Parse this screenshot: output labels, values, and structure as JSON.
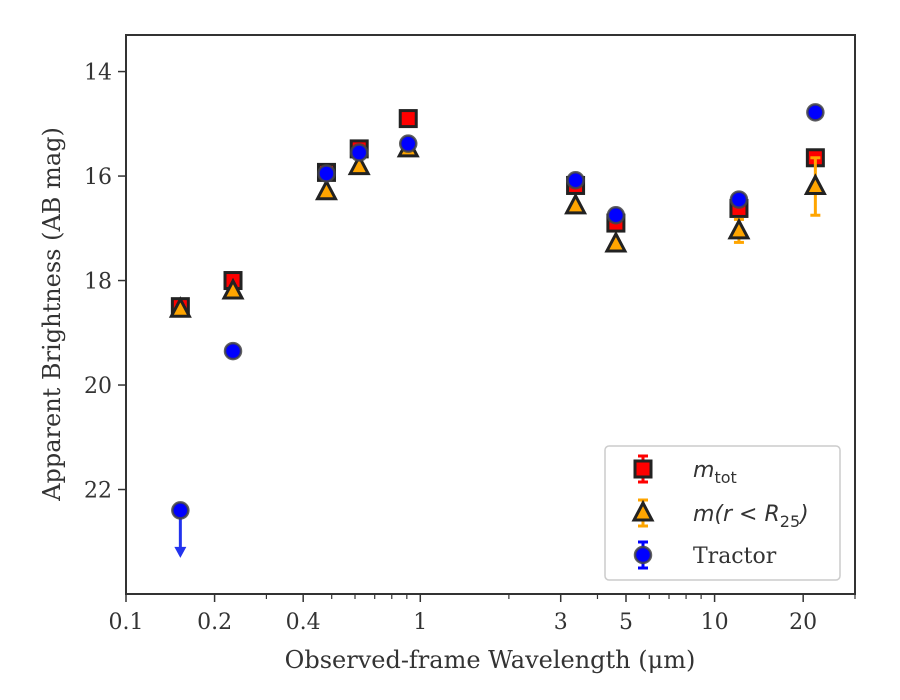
{
  "chart_data": {
    "type": "scatter",
    "xlabel": "Observed-frame Wavelength (μm)",
    "ylabel": "Apparent Brightness (AB mag)",
    "xscale": "log",
    "xlim": [
      0.1,
      30
    ],
    "ylim": [
      24.0,
      13.3
    ],
    "y_inverted": true,
    "x_ticks": [
      {
        "value": 0.1,
        "label": "0.1"
      },
      {
        "value": 0.2,
        "label": "0.2"
      },
      {
        "value": 0.4,
        "label": "0.4"
      },
      {
        "value": 1,
        "label": "1"
      },
      {
        "value": 3,
        "label": "3"
      },
      {
        "value": 5,
        "label": "5"
      },
      {
        "value": 10,
        "label": "10"
      },
      {
        "value": 20,
        "label": "20"
      }
    ],
    "x_minor_ticks": [
      0.3,
      0.5,
      0.6,
      0.7,
      0.8,
      0.9,
      2,
      4,
      6,
      7,
      8,
      9,
      30
    ],
    "y_ticks": [
      {
        "value": 14,
        "label": "14"
      },
      {
        "value": 16,
        "label": "16"
      },
      {
        "value": 18,
        "label": "18"
      },
      {
        "value": 20,
        "label": "20"
      },
      {
        "value": 22,
        "label": "22"
      }
    ],
    "legend_position": "lower-right",
    "series": [
      {
        "name": "m_tot",
        "legend_main": "m",
        "legend_sub": "tot",
        "marker": "square",
        "color": "#ff0000",
        "edge": "#222222",
        "points": [
          {
            "x": 0.153,
            "y": 18.5,
            "err": 0.1
          },
          {
            "x": 0.231,
            "y": 18.0,
            "err": 0.1
          },
          {
            "x": 0.48,
            "y": 15.93,
            "err": 0.1
          },
          {
            "x": 0.62,
            "y": 15.48,
            "err": 0.1
          },
          {
            "x": 0.91,
            "y": 14.9,
            "err": 0.08
          },
          {
            "x": 3.37,
            "y": 16.18,
            "err": 0.12
          },
          {
            "x": 4.62,
            "y": 16.9,
            "err": 0.12
          },
          {
            "x": 12.1,
            "y": 16.62,
            "err": 0.12
          },
          {
            "x": 22.0,
            "y": 15.65,
            "err": 0.1
          }
        ]
      },
      {
        "name": "m(r<R25)",
        "legend_main": "m(r < R",
        "legend_sub": "25",
        "legend_tail": ")",
        "marker": "triangle",
        "color": "#ffa500",
        "edge": "#222222",
        "points": [
          {
            "x": 0.153,
            "y": 18.55,
            "err": 0.05
          },
          {
            "x": 0.231,
            "y": 18.2,
            "err": 0.05
          },
          {
            "x": 0.48,
            "y": 16.3,
            "err": 0.05
          },
          {
            "x": 0.62,
            "y": 15.82,
            "err": 0.05
          },
          {
            "x": 0.91,
            "y": 15.48,
            "err": 0.05
          },
          {
            "x": 3.37,
            "y": 16.57,
            "err": 0.05
          },
          {
            "x": 4.62,
            "y": 17.3,
            "err": 0.05
          },
          {
            "x": 12.1,
            "y": 17.05,
            "err": 0.22
          },
          {
            "x": 22.0,
            "y": 16.2,
            "err": 0.55
          }
        ]
      },
      {
        "name": "Tractor",
        "legend_main": "Tractor",
        "marker": "circle",
        "color": "#0000ff",
        "edge": "#444444",
        "points": [
          {
            "x": 0.153,
            "y": 22.4,
            "err": 0.0,
            "upper_limit": true
          },
          {
            "x": 0.231,
            "y": 19.35,
            "err": 0.05
          },
          {
            "x": 0.48,
            "y": 15.95,
            "err": 0.05
          },
          {
            "x": 0.62,
            "y": 15.55,
            "err": 0.05
          },
          {
            "x": 0.91,
            "y": 15.38,
            "err": 0.05
          },
          {
            "x": 3.37,
            "y": 16.08,
            "err": 0.05
          },
          {
            "x": 4.62,
            "y": 16.75,
            "err": 0.1
          },
          {
            "x": 12.1,
            "y": 16.45,
            "err": 0.1
          },
          {
            "x": 22.0,
            "y": 14.78,
            "err": 0.08
          }
        ]
      }
    ]
  }
}
